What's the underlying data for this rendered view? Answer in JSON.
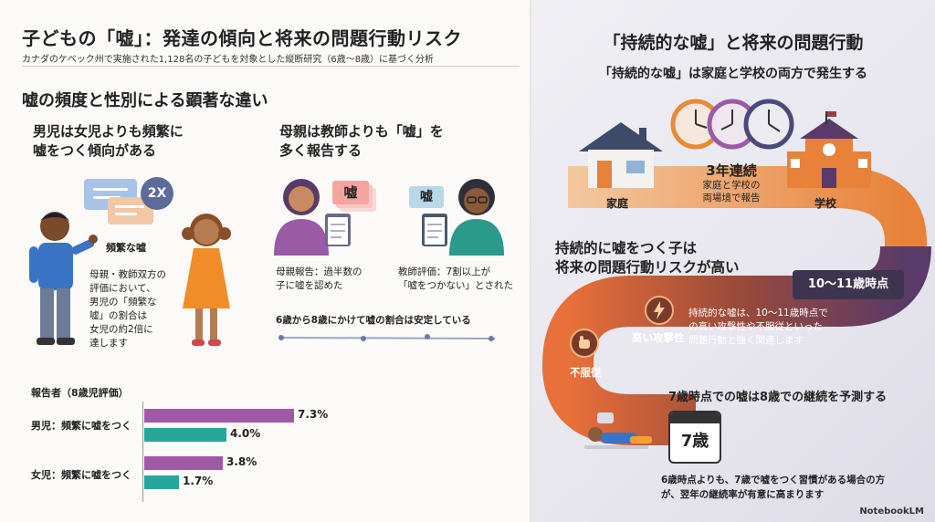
{
  "left": {
    "title": "子どもの「嘘」：発達の傾向と将来の問題行動リスク",
    "subtitle": "カナダのケベック州で実施された1,128名の子どもを対象とした縦断研究（6歳〜8歳）に基づく分析",
    "section_title": "嘘の頻度と性別による顕著な違い",
    "boys": {
      "heading_line1": "男児は女児よりも頻繁に",
      "heading_line2": "嘘をつく傾向がある",
      "badge": "2X",
      "frequent_label": "頻繁な嘘",
      "desc_line1": "母親・教師双方の",
      "desc_line2": "評価において、",
      "desc_line3": "男児の「頻繁な",
      "desc_line4": "嘘」の割合は",
      "desc_line5": "女児の約2倍に",
      "desc_line6": "達します"
    },
    "mothers": {
      "heading_line1": "母親は教師よりも「嘘」を",
      "heading_line2": "多く報告する",
      "card_mother": "嘘",
      "card_teacher": "嘘",
      "mother_note_line1": "母親報告：過半数の",
      "mother_note_line2": "子に嘘を認めた",
      "teacher_note_line1": "教師評価：7割以上が",
      "teacher_note_line2": "「嘘をつかない」とされた",
      "stable_note": "6歳から8歳にかけて嘘の割合は安定している"
    },
    "chart": {
      "header": "報告者（8歳児評価）",
      "rows": [
        {
          "label": "男児：頻繁に嘘をつく",
          "mother": 7.3,
          "teacher": 4.0,
          "mother_label": "7.3%",
          "teacher_label": "4.0%"
        },
        {
          "label": "女児：頻繁に嘘をつく",
          "mother": 3.8,
          "teacher": 1.7,
          "mother_label": "3.8%",
          "teacher_label": "1.7%"
        }
      ],
      "max": 8,
      "colors": {
        "mother": "#a05aa5",
        "teacher": "#27a79c"
      }
    }
  },
  "right": {
    "title": "「持続的な嘘」と将来の問題行動",
    "subtitle": "「持続的な嘘」は家庭と学校の両方で発生する",
    "home_label": "家庭",
    "school_label": "学校",
    "center_big": "3年連続",
    "center_small_line1": "家庭と学校の",
    "center_small_line2": "両場境で報告",
    "risk_line1": "持続的に嘘をつく子は",
    "risk_line2": "将来の問題行動リスクが高い",
    "age_badge": "10〜11歳時点",
    "aggression_label": "高い攻撃性",
    "defiance_label": "不服従",
    "risk_desc_line1": "持続的な嘘は、10〜11歳時点で",
    "risk_desc_line2": "の高い攻撃性や不服従といった",
    "risk_desc_line3": "問題行動と強く関連します",
    "predict_title": "7歳時点での嘘は8歳での継続を予測する",
    "calendar_label": "7歳",
    "predict_desc_line1": "6歳時点よりも、7歳で嘘をつく習慣がある場合の方",
    "predict_desc_line2": "が、翌年の継続率が有意に高まります",
    "logo": "NotebookLM"
  }
}
